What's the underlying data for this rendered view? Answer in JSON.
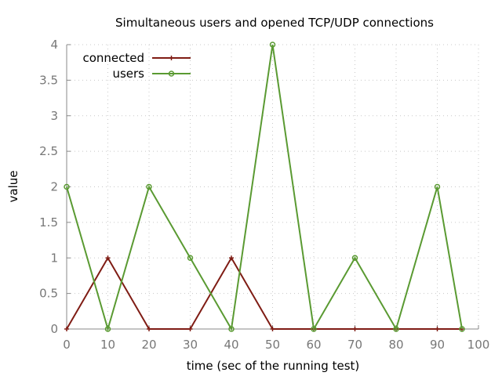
{
  "chart_data": {
    "type": "line",
    "title": "Simultaneous users and opened TCP/UDP connections",
    "xlabel": "time (sec of the running test)",
    "ylabel": "value",
    "xlim": [
      0,
      100
    ],
    "ylim": [
      0,
      4
    ],
    "xticks": [
      0,
      10,
      20,
      30,
      40,
      50,
      60,
      70,
      80,
      90,
      100
    ],
    "yticks": [
      0,
      0.5,
      1,
      1.5,
      2,
      2.5,
      3,
      3.5,
      4
    ],
    "grid": true,
    "legend_position": "top-left",
    "series": [
      {
        "name": "connected",
        "color": "#7f1c14",
        "marker": "plus",
        "points": [
          [
            0,
            0
          ],
          [
            10,
            1
          ],
          [
            20,
            0
          ],
          [
            30,
            0
          ],
          [
            40,
            1
          ],
          [
            50,
            0
          ],
          [
            60,
            0
          ],
          [
            70,
            0
          ],
          [
            80,
            0
          ],
          [
            90,
            0
          ],
          [
            96,
            0
          ]
        ]
      },
      {
        "name": "users",
        "color": "#5a9a32",
        "marker": "circle",
        "points": [
          [
            0,
            2
          ],
          [
            10,
            0
          ],
          [
            20,
            2
          ],
          [
            30,
            1
          ],
          [
            40,
            0
          ],
          [
            50,
            4
          ],
          [
            60,
            0
          ],
          [
            70,
            1
          ],
          [
            80,
            0
          ],
          [
            90,
            2
          ],
          [
            96,
            0
          ]
        ]
      }
    ]
  }
}
